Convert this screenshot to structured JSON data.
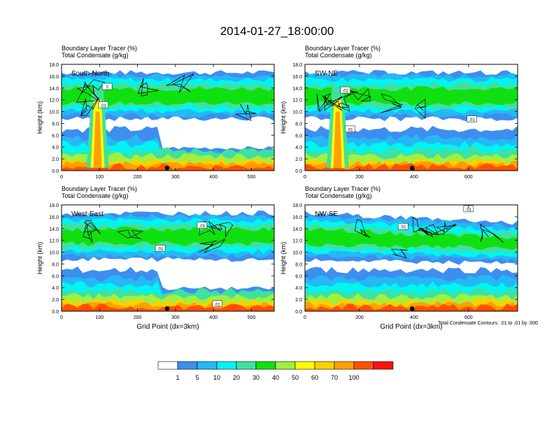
{
  "figure": {
    "title": "2014-01-27_18:00:00",
    "contour_note": "Total Condensate Contours: .01 to .01 by .000",
    "xlabel": "Grid Point (dx=3km)"
  },
  "colorbar": {
    "colors": [
      "#ffffff",
      "#3e8ef0",
      "#26b8f5",
      "#00f5f0",
      "#40e0a0",
      "#10e010",
      "#a0f040",
      "#ffff00",
      "#ffd000",
      "#ffa000",
      "#ff5000",
      "#ff1010"
    ],
    "labels": [
      "1",
      "5",
      "10",
      "20",
      "30",
      "40",
      "50",
      "60",
      "70",
      "100"
    ]
  },
  "chart_data": [
    {
      "type": "heatmap",
      "label": "South-North",
      "title_line1": "Boundary Layer Tracer   (%)",
      "title_line2": "Total Condensate   (g/kg)",
      "ylabel": "Height (km)",
      "xlabel": "",
      "xlim": [
        0,
        560
      ],
      "ylim": [
        0,
        18
      ],
      "xticks": [
        0,
        100,
        200,
        300,
        400,
        500
      ],
      "yticks": [
        "0.0",
        "2.0",
        "4.0",
        "6.0",
        "8.0",
        "10.0",
        "12.0",
        "14.0",
        "16.0",
        "18.0"
      ],
      "contour_labels": [
        {
          "text": "0",
          "x": 120,
          "y": 14.2
        },
        {
          "text": ".01",
          "x": 110,
          "y": 11.1
        }
      ],
      "marker_x": 278
    },
    {
      "type": "heatmap",
      "label": "SW-NE",
      "title_line1": "Boundary Layer Tracer   (%)",
      "title_line2": "Total Condensate   (g/kg)",
      "ylabel": "Height (km)",
      "xlabel": "",
      "xlim": [
        0,
        780
      ],
      "ylim": [
        0,
        18
      ],
      "xticks": [
        0,
        200,
        400,
        600
      ],
      "yticks": [
        "0.0",
        "2.0",
        "4.0",
        "6.0",
        "8.0",
        "10.0",
        "12.0",
        "14.0",
        "16.0",
        "18.0"
      ],
      "contour_labels": [
        {
          "text": ".01",
          "x": 148,
          "y": 13.6
        },
        {
          "text": ".01",
          "x": 165,
          "y": 7.0
        },
        {
          "text": ".01",
          "x": 612,
          "y": 8.7
        }
      ],
      "marker_x": 393
    },
    {
      "type": "heatmap",
      "label": "West-East",
      "title_line1": "Boundary Layer Tracer   (%)",
      "title_line2": "Total Condensate   (g/kg)",
      "ylabel": "Height (km)",
      "xlabel": "Grid Point (dx=3km)",
      "xlim": [
        0,
        560
      ],
      "ylim": [
        0,
        18
      ],
      "xticks": [
        0,
        100,
        200,
        300,
        400,
        500
      ],
      "yticks": [
        "0.0",
        "2.0",
        "4.0",
        "6.0",
        "8.0",
        "10.0",
        "12.0",
        "14.0",
        "16.0",
        "18.0"
      ],
      "contour_labels": [
        {
          "text": ".01",
          "x": 370,
          "y": 14.5
        },
        {
          "text": ".01",
          "x": 260,
          "y": 10.6
        },
        {
          "text": ".01",
          "x": 410,
          "y": 1.2
        }
      ],
      "marker_x": 278
    },
    {
      "type": "heatmap",
      "label": "NW-SE",
      "title_line1": "Boundary Layer Tracer   (%)",
      "title_line2": "Total Condensate   (g/kg)",
      "ylabel": "Height (km)",
      "xlabel": "Grid Point (dx=3km)",
      "xlim": [
        0,
        780
      ],
      "ylim": [
        0,
        18
      ],
      "xticks": [
        0,
        200,
        400,
        600
      ],
      "yticks": [
        "0.0",
        "2.0",
        "4.0",
        "6.0",
        "8.0",
        "10.0",
        "12.0",
        "14.0",
        "16.0",
        "18.0"
      ],
      "contour_labels": [
        {
          "text": ".01",
          "x": 360,
          "y": 14.3
        },
        {
          "text": ".01",
          "x": 600,
          "y": 17.3
        }
      ],
      "marker_x": 393
    }
  ]
}
